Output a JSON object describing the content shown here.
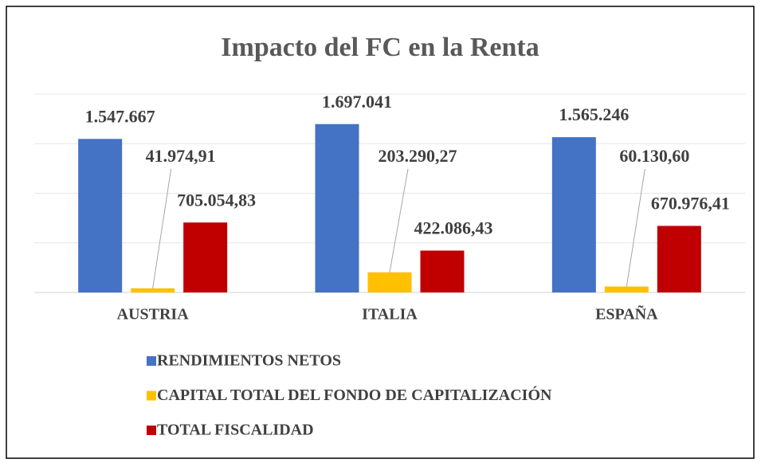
{
  "chart_data": {
    "type": "bar",
    "title": "Impacto del FC en la Renta",
    "categories": [
      "AUSTRIA",
      "ITALIA",
      "ESPAÑA"
    ],
    "series": [
      {
        "name": "RENDIMIENTOS NETOS",
        "color": "#4472c4",
        "values": [
          1547667,
          1697041,
          1565246
        ],
        "value_labels": [
          "1.547.667",
          "1.697.041",
          "1.565.246"
        ]
      },
      {
        "name": "CAPITAL TOTAL DEL FONDO DE CAPITALIZACIÓN",
        "color": "#ffc000",
        "values": [
          41974.91,
          203290.27,
          60130.6
        ],
        "value_labels": [
          "41.974,91",
          "203.290,27",
          "60.130,60"
        ]
      },
      {
        "name": "TOTAL FISCALIDAD",
        "color": "#c00000",
        "values": [
          705054.83,
          422086.43,
          670976.41
        ],
        "value_labels": [
          "705.054,83",
          "422.086,43",
          "670.976,41"
        ]
      }
    ],
    "ylim": [
      0,
      2000000
    ],
    "yticks": [
      0,
      500000,
      1000000,
      1500000,
      2000000
    ],
    "grid": true
  }
}
